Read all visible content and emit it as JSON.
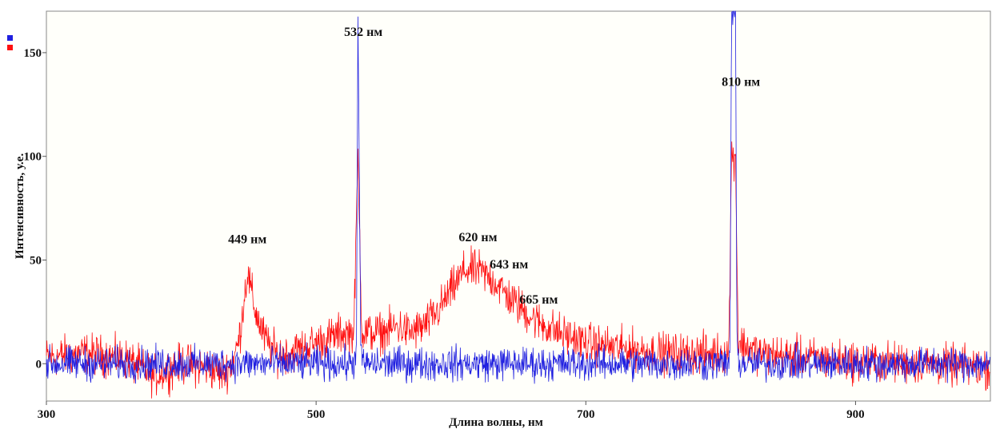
{
  "chart_data": {
    "type": "line",
    "title": "",
    "xlabel": "Длина волны, нм",
    "ylabel": "Интенсивность, у.е.",
    "xlim": [
      300,
      1000
    ],
    "ylim": [
      -18,
      170
    ],
    "x_ticks": [
      300,
      500,
      700,
      900
    ],
    "y_ticks": [
      0,
      50,
      100,
      150
    ],
    "grid": false,
    "legend": "top-left",
    "series": [
      {
        "color": "#2020e0",
        "noise": 5,
        "points": [
          [
            300,
            0
          ],
          [
            528,
            0
          ],
          [
            530,
            10
          ],
          [
            531,
            170
          ],
          [
            533,
            10
          ],
          [
            535,
            0
          ],
          [
            806,
            0
          ],
          [
            807,
            10
          ],
          [
            808,
            170
          ],
          [
            811,
            170
          ],
          [
            812,
            10
          ],
          [
            814,
            0
          ],
          [
            1000,
            0
          ]
        ]
      },
      {
        "color": "#ff1010",
        "noise": 6,
        "points": [
          [
            300,
            3
          ],
          [
            330,
            5
          ],
          [
            360,
            2
          ],
          [
            380,
            -6
          ],
          [
            400,
            0
          ],
          [
            420,
            -2
          ],
          [
            430,
            -5
          ],
          [
            438,
            0
          ],
          [
            443,
            12
          ],
          [
            449,
            44
          ],
          [
            455,
            25
          ],
          [
            462,
            12
          ],
          [
            470,
            5
          ],
          [
            480,
            5
          ],
          [
            500,
            10
          ],
          [
            520,
            15
          ],
          [
            528,
            15
          ],
          [
            531,
            100
          ],
          [
            534,
            15
          ],
          [
            550,
            15
          ],
          [
            560,
            18
          ],
          [
            570,
            15
          ],
          [
            580,
            18
          ],
          [
            590,
            25
          ],
          [
            600,
            35
          ],
          [
            610,
            45
          ],
          [
            620,
            45
          ],
          [
            632,
            40
          ],
          [
            643,
            32
          ],
          [
            655,
            25
          ],
          [
            665,
            20
          ],
          [
            680,
            15
          ],
          [
            700,
            10
          ],
          [
            720,
            8
          ],
          [
            760,
            5
          ],
          [
            800,
            5
          ],
          [
            806,
            5
          ],
          [
            808,
            100
          ],
          [
            811,
            100
          ],
          [
            813,
            10
          ],
          [
            830,
            5
          ],
          [
            860,
            3
          ],
          [
            900,
            1
          ],
          [
            950,
            0
          ],
          [
            1000,
            -2
          ]
        ]
      }
    ],
    "annotations": [
      {
        "text": "449 нм",
        "x": 449,
        "y": 58
      },
      {
        "text": "532 нм",
        "x": 535,
        "y": 158
      },
      {
        "text": "620 нм",
        "x": 620,
        "y": 59
      },
      {
        "text": "643 нм",
        "x": 643,
        "y": 46
      },
      {
        "text": "665 нм",
        "x": 665,
        "y": 29
      },
      {
        "text": "810 нм",
        "x": 815,
        "y": 134
      }
    ]
  }
}
